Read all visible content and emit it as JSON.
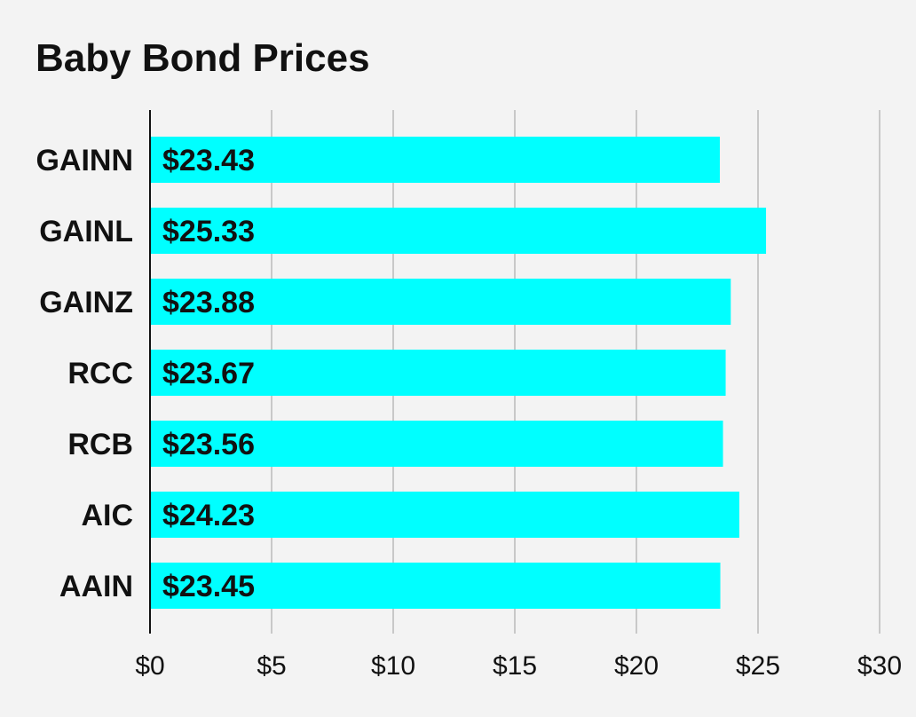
{
  "chart_data": {
    "type": "bar",
    "orientation": "horizontal",
    "title": "Baby Bond Prices",
    "categories": [
      "GAINN",
      "GAINL",
      "GAINZ",
      "RCC",
      "RCB",
      "AIC",
      "AAIN"
    ],
    "values": [
      23.43,
      25.33,
      23.88,
      23.67,
      23.56,
      24.23,
      23.45
    ],
    "value_labels": [
      "$23.43",
      "$25.33",
      "$23.88",
      "$23.67",
      "$23.56",
      "$24.23",
      "$23.45"
    ],
    "x_ticks": [
      0,
      5,
      10,
      15,
      20,
      25,
      30
    ],
    "x_tick_labels": [
      "$0",
      "$5",
      "$10",
      "$15",
      "$20",
      "$25",
      "$30"
    ],
    "xlim": [
      0,
      30
    ],
    "xlabel": "",
    "ylabel": "",
    "grid": true,
    "legend": "none",
    "colors": {
      "bar": "#00ffff",
      "background": "#f3f3f3",
      "gridline": "#c8c8c8",
      "axis": "#111111",
      "text": "#111111"
    }
  }
}
